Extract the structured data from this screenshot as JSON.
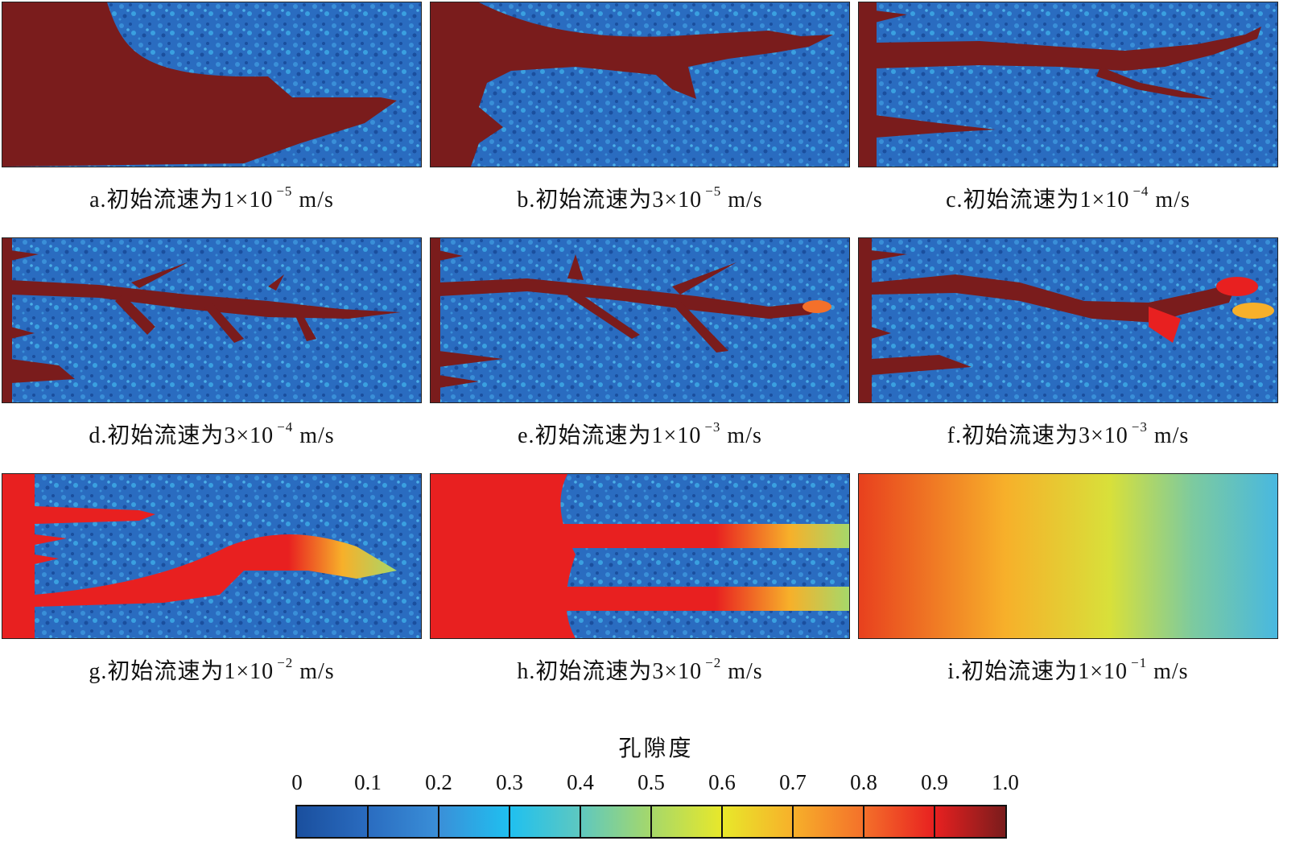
{
  "panels": [
    {
      "id": "a",
      "caption_prefix": "a.初始流速为",
      "coef": "1×10",
      "exp": "−5",
      "unit": "m/s",
      "regime": "compact"
    },
    {
      "id": "b",
      "caption_prefix": "b.初始流速为",
      "coef": "3×10",
      "exp": "−5",
      "unit": "m/s",
      "regime": "conical"
    },
    {
      "id": "c",
      "caption_prefix": "c.初始流速为",
      "coef": "1×10",
      "exp": "−4",
      "unit": "m/s",
      "regime": "wormhole"
    },
    {
      "id": "d",
      "caption_prefix": "d.初始流速为",
      "coef": "3×10",
      "exp": "−4",
      "unit": "m/s",
      "regime": "branched"
    },
    {
      "id": "e",
      "caption_prefix": "e.初始流速为",
      "coef": "1×10",
      "exp": "−3",
      "unit": "m/s",
      "regime": "branched"
    },
    {
      "id": "f",
      "caption_prefix": "f.初始流速为",
      "coef": "3×10",
      "exp": "−3",
      "unit": "m/s",
      "regime": "ramified"
    },
    {
      "id": "g",
      "caption_prefix": "g.初始流速为",
      "coef": "1×10",
      "exp": "−2",
      "unit": "m/s",
      "regime": "ramified"
    },
    {
      "id": "h",
      "caption_prefix": "h.初始流速为",
      "coef": "3×10",
      "exp": "−2",
      "unit": "m/s",
      "regime": "uniform-channels"
    },
    {
      "id": "i",
      "caption_prefix": "i.初始流速为",
      "coef": "1×10",
      "exp": "−1",
      "unit": "m/s",
      "regime": "uniform"
    }
  ],
  "colorbar": {
    "title": "孔隙度",
    "ticks": [
      "0",
      "0.1",
      "0.2",
      "0.3",
      "0.4",
      "0.5",
      "0.6",
      "0.7",
      "0.8",
      "0.9",
      "1.0"
    ],
    "colors": [
      "#1a4f9e",
      "#2a6cc0",
      "#3a8fd8",
      "#1fc0f0",
      "#5ec8c0",
      "#a6d86a",
      "#e8e82a",
      "#f7b02a",
      "#f4702a",
      "#e82020",
      "#7a1c1c"
    ]
  }
}
